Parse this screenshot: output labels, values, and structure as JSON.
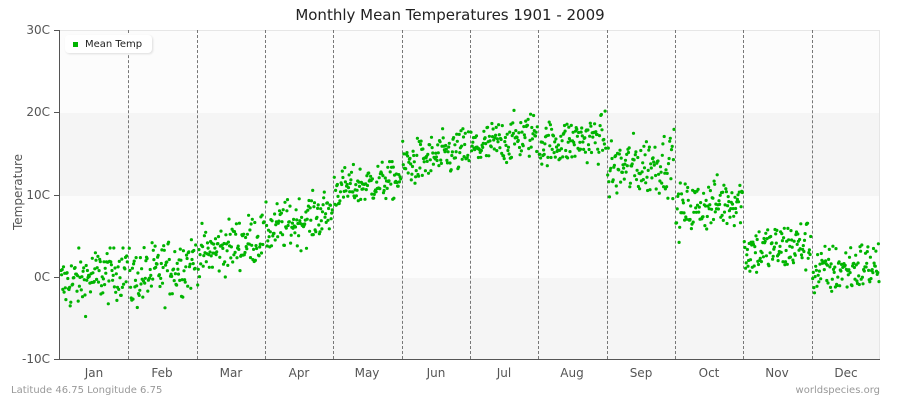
{
  "title": "Monthly Mean Temperatures 1901 - 2009",
  "legend": {
    "label": "Mean Temp",
    "color": "#00b400"
  },
  "y_axis": {
    "title": "Temperature",
    "ticks": [
      "30C",
      "20C",
      "10C",
      "0C",
      "-10C"
    ]
  },
  "x_axis": {
    "months": [
      "Jan",
      "Feb",
      "Mar",
      "Apr",
      "May",
      "Jun",
      "Jul",
      "Aug",
      "Sep",
      "Oct",
      "Nov",
      "Dec"
    ]
  },
  "footer": {
    "location": "Latitude 46.75 Longitude 6.75",
    "source": "worldspecies.org"
  },
  "chart_data": {
    "type": "scatter",
    "title": "Monthly Mean Temperatures 1901 - 2009",
    "xlabel": "",
    "ylabel": "Temperature",
    "ylim": [
      -10,
      30
    ],
    "yticks": [
      -10,
      0,
      10,
      20,
      30
    ],
    "ytick_labels": [
      "-10C",
      "0C",
      "10C",
      "20C",
      "30C"
    ],
    "categories": [
      "Jan",
      "Feb",
      "Mar",
      "Apr",
      "May",
      "Jun",
      "Jul",
      "Aug",
      "Sep",
      "Oct",
      "Nov",
      "Dec"
    ],
    "legend": [
      "Mean Temp"
    ],
    "legend_position": "top-left",
    "grid": "alternating horizontal bands, dashed vertical month separators",
    "points_per_month": 109,
    "series": [
      {
        "name": "Mean Temp",
        "color": "#00b400",
        "monthly_start_mean": [
          -1.0,
          -0.5,
          2.5,
          5.5,
          10.5,
          13.5,
          15.5,
          16.0,
          13.0,
          8.0,
          3.0,
          0.5
        ],
        "monthly_end_mean": [
          1.0,
          2.0,
          5.0,
          8.0,
          12.0,
          15.5,
          17.5,
          17.0,
          14.0,
          9.5,
          4.0,
          1.5
        ],
        "monthly_min": [
          -6.0,
          -5.5,
          -1.0,
          2.5,
          7.5,
          10.5,
          13.0,
          13.5,
          9.5,
          4.0,
          -1.5,
          -4.5
        ],
        "monthly_max": [
          3.5,
          4.5,
          7.5,
          10.5,
          14.0,
          18.0,
          20.5,
          21.0,
          19.5,
          12.5,
          7.0,
          4.0
        ]
      }
    ]
  }
}
